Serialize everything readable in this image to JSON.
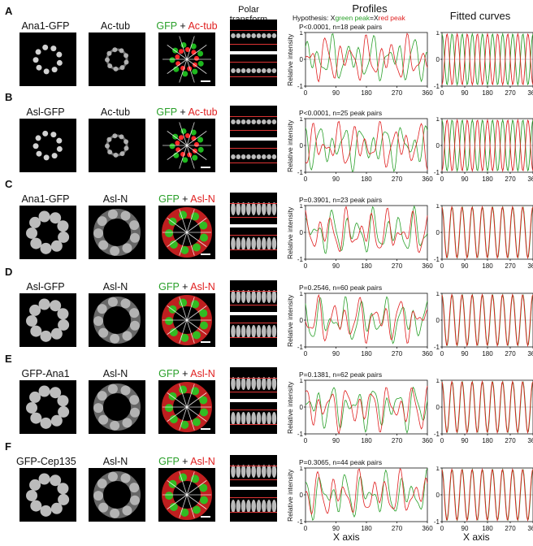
{
  "figure": {
    "col_headers": {
      "polar": "Polar\ntransform",
      "profiles": "Profiles",
      "fitted": "Fitted curves",
      "hypothesis_prefix": "Hypothesis: X",
      "hypothesis_green": "green peak",
      "hypothesis_eq": "=X",
      "hypothesis_red": "red peak"
    },
    "x_axis_label": "X axis",
    "y_axis_label": "Relative intensity",
    "x_ticks": [
      "0",
      "90",
      "180",
      "270",
      "360"
    ],
    "y_ticks": [
      "1",
      "0",
      "-1"
    ],
    "merge_plus": "+",
    "panels": [
      {
        "label": "A",
        "ch1": "Ana1-GFP",
        "ch2": "Ac-tub",
        "merge_g": "GFP",
        "merge_r": "Ac-tub",
        "stat": "P<0.0001, n=18 peak pairs"
      },
      {
        "label": "B",
        "ch1": "Asl-GFP",
        "ch2": "Ac-tub",
        "merge_g": "GFP",
        "merge_r": "Ac-tub",
        "stat": "P<0.0001, n=25 peak pairs"
      },
      {
        "label": "C",
        "ch1": "Ana1-GFP",
        "ch2": "Asl-N",
        "merge_g": "GFP",
        "merge_r": "Asl-N",
        "stat": "P=0.3901, n=23 peak pairs"
      },
      {
        "label": "D",
        "ch1": "Asl-GFP",
        "ch2": "Asl-N",
        "merge_g": "GFP",
        "merge_r": "Asl-N",
        "stat": "P=0.2546, n=60 peak pairs"
      },
      {
        "label": "E",
        "ch1": "GFP-Ana1",
        "ch2": "Asl-N",
        "merge_g": "GFP",
        "merge_r": "Asl-N",
        "stat": "P=0.1381, n=62 peak pairs"
      },
      {
        "label": "F",
        "ch1": "GFP-Cep135",
        "ch2": "Asl-N",
        "merge_g": "GFP",
        "merge_r": "Asl-N",
        "stat": "P=0.3065, n=44 peak pairs"
      }
    ],
    "colors": {
      "green": "#2aa02a",
      "red": "#e02020",
      "merge_green": "#22cc22",
      "merge_red": "#ff2a2a"
    }
  }
}
